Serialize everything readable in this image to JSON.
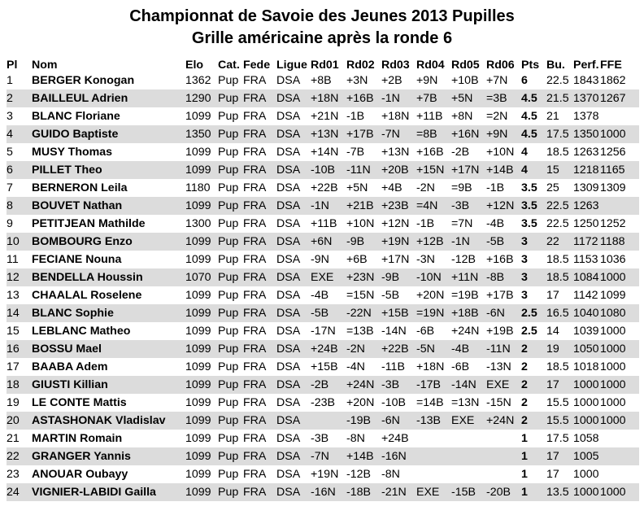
{
  "title": "Championnat de Savoie des Jeunes 2013 Pupilles",
  "subtitle": "Grille américaine après la ronde 6",
  "headers": [
    "Pl",
    "Nom",
    "Elo",
    "Cat.",
    "Fede",
    "Ligue",
    "Rd01",
    "Rd02",
    "Rd03",
    "Rd04",
    "Rd05",
    "Rd06",
    "Pts",
    "Bu.",
    "Perf.",
    "FFE"
  ],
  "rows": [
    [
      "1",
      "BERGER Konogan",
      "1362",
      "Pup",
      "FRA",
      "DSA",
      "+8B",
      "+3N",
      "+2B",
      "+9N",
      "+10B",
      "+7N",
      "6",
      "22.5",
      "1843",
      "1862"
    ],
    [
      "2",
      "BAILLEUL Adrien",
      "1290",
      "Pup",
      "FRA",
      "DSA",
      "+18N",
      "+16B",
      "-1N",
      "+7B",
      "+5N",
      "=3B",
      "4.5",
      "21.5",
      "1370",
      "1267"
    ],
    [
      "3",
      "BLANC Floriane",
      "1099",
      "Pup",
      "FRA",
      "DSA",
      "+21N",
      "-1B",
      "+18N",
      "+11B",
      "+8N",
      "=2N",
      "4.5",
      "21",
      "1378",
      ""
    ],
    [
      "4",
      "GUIDO Baptiste",
      "1350",
      "Pup",
      "FRA",
      "DSA",
      "+13N",
      "+17B",
      "-7N",
      "=8B",
      "+16N",
      "+9N",
      "4.5",
      "17.5",
      "1350",
      "1000"
    ],
    [
      "5",
      "MUSY Thomas",
      "1099",
      "Pup",
      "FRA",
      "DSA",
      "+14N",
      "-7B",
      "+13N",
      "+16B",
      "-2B",
      "+10N",
      "4",
      "18.5",
      "1263",
      "1256"
    ],
    [
      "6",
      "PILLET Theo",
      "1099",
      "Pup",
      "FRA",
      "DSA",
      "-10B",
      "-11N",
      "+20B",
      "+15N",
      "+17N",
      "+14B",
      "4",
      "15",
      "1218",
      "1165"
    ],
    [
      "7",
      "BERNERON Leila",
      "1180",
      "Pup",
      "FRA",
      "DSA",
      "+22B",
      "+5N",
      "+4B",
      "-2N",
      "=9B",
      "-1B",
      "3.5",
      "25",
      "1309",
      "1309"
    ],
    [
      "8",
      "BOUVET Nathan",
      "1099",
      "Pup",
      "FRA",
      "DSA",
      "-1N",
      "+21B",
      "+23B",
      "=4N",
      "-3B",
      "+12N",
      "3.5",
      "22.5",
      "1263",
      ""
    ],
    [
      "9",
      "PETITJEAN Mathilde",
      "1300",
      "Pup",
      "FRA",
      "DSA",
      "+11B",
      "+10N",
      "+12N",
      "-1B",
      "=7N",
      "-4B",
      "3.5",
      "22.5",
      "1250",
      "1252"
    ],
    [
      "10",
      "BOMBOURG Enzo",
      "1099",
      "Pup",
      "FRA",
      "DSA",
      "+6N",
      "-9B",
      "+19N",
      "+12B",
      "-1N",
      "-5B",
      "3",
      "22",
      "1172",
      "1188"
    ],
    [
      "11",
      "FECIANE Nouna",
      "1099",
      "Pup",
      "FRA",
      "DSA",
      "-9N",
      "+6B",
      "+17N",
      "-3N",
      "-12B",
      "+16B",
      "3",
      "18.5",
      "1153",
      "1036"
    ],
    [
      "12",
      "BENDELLA Houssin",
      "1070",
      "Pup",
      "FRA",
      "DSA",
      "EXE",
      "+23N",
      "-9B",
      "-10N",
      "+11N",
      "-8B",
      "3",
      "18.5",
      "1084",
      "1000"
    ],
    [
      "13",
      "CHAALAL Roselene",
      "1099",
      "Pup",
      "FRA",
      "DSA",
      "-4B",
      "=15N",
      "-5B",
      "+20N",
      "=19B",
      "+17B",
      "3",
      "17",
      "1142",
      "1099"
    ],
    [
      "14",
      "BLANC Sophie",
      "1099",
      "Pup",
      "FRA",
      "DSA",
      "-5B",
      "-22N",
      "+15B",
      "=19N",
      "+18B",
      "-6N",
      "2.5",
      "16.5",
      "1040",
      "1080"
    ],
    [
      "15",
      "LEBLANC Matheo",
      "1099",
      "Pup",
      "FRA",
      "DSA",
      "-17N",
      "=13B",
      "-14N",
      "-6B",
      "+24N",
      "+19B",
      "2.5",
      "14",
      "1039",
      "1000"
    ],
    [
      "16",
      "BOSSU Mael",
      "1099",
      "Pup",
      "FRA",
      "DSA",
      "+24B",
      "-2N",
      "+22B",
      "-5N",
      "-4B",
      "-11N",
      "2",
      "19",
      "1050",
      "1000"
    ],
    [
      "17",
      "BAABA Adem",
      "1099",
      "Pup",
      "FRA",
      "DSA",
      "+15B",
      "-4N",
      "-11B",
      "+18N",
      "-6B",
      "-13N",
      "2",
      "18.5",
      "1018",
      "1000"
    ],
    [
      "18",
      "GIUSTI Killian",
      "1099",
      "Pup",
      "FRA",
      "DSA",
      "-2B",
      "+24N",
      "-3B",
      "-17B",
      "-14N",
      "EXE",
      "2",
      "17",
      "1000",
      "1000"
    ],
    [
      "19",
      "LE CONTE Mattis",
      "1099",
      "Pup",
      "FRA",
      "DSA",
      "-23B",
      "+20N",
      "-10B",
      "=14B",
      "=13N",
      "-15N",
      "2",
      "15.5",
      "1000",
      "1000"
    ],
    [
      "20",
      "ASTASHONAK Vladislav",
      "1099",
      "Pup",
      "FRA",
      "DSA",
      "",
      "-19B",
      "-6N",
      "-13B",
      "EXE",
      "+24N",
      "2",
      "15.5",
      "1000",
      "1000"
    ],
    [
      "21",
      "MARTIN Romain",
      "1099",
      "Pup",
      "FRA",
      "DSA",
      "-3B",
      "-8N",
      "+24B",
      "",
      "",
      "",
      "1",
      "17.5",
      "1058",
      ""
    ],
    [
      "22",
      "GRANGER Yannis",
      "1099",
      "Pup",
      "FRA",
      "DSA",
      "-7N",
      "+14B",
      "-16N",
      "",
      "",
      "",
      "1",
      "17",
      "1005",
      ""
    ],
    [
      "23",
      "ANOUAR Oubayy",
      "1099",
      "Pup",
      "FRA",
      "DSA",
      "+19N",
      "-12B",
      "-8N",
      "",
      "",
      "",
      "1",
      "17",
      "1000",
      ""
    ],
    [
      "24",
      "VIGNIER-LABIDI Gailla",
      "1099",
      "Pup",
      "FRA",
      "DSA",
      "-16N",
      "-18B",
      "-21N",
      "EXE",
      "-15B",
      "-20B",
      "1",
      "13.5",
      "1000",
      "1000"
    ]
  ]
}
